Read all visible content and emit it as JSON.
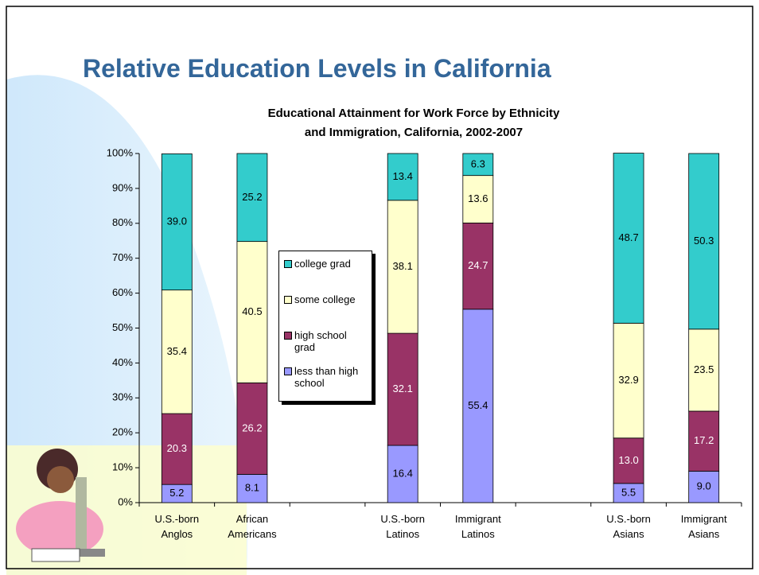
{
  "slide_title": "Relative Education Levels in California",
  "chart_data": {
    "type": "stacked_bar",
    "title": "Educational Attainment for Work Force by Ethnicity\nand Immigration, California, 2002-2007",
    "categories": [
      "U.S.-born\nAnglos",
      "African\nAmericans",
      null,
      "U.S.-born\nLatinos",
      "Immigrant\nLatinos",
      null,
      "U.S.-born\nAsians",
      "Immigrant\nAsians"
    ],
    "series": [
      {
        "name": "less than high school",
        "color": "#9999ff",
        "label_color": "#000000",
        "values": [
          5.2,
          8.1,
          null,
          16.4,
          55.4,
          null,
          5.5,
          9.0
        ],
        "value_labels": [
          "5.2",
          "8.1",
          null,
          "16.4",
          "55.4",
          null,
          "5.5",
          "9.0"
        ]
      },
      {
        "name": "high school grad",
        "color": "#993366",
        "label_color": "#ffffff",
        "values": [
          20.3,
          26.2,
          null,
          32.1,
          24.7,
          null,
          13.0,
          17.2
        ],
        "value_labels": [
          "20.3",
          "26.2",
          null,
          "32.1",
          "24.7",
          null,
          "13.0",
          "17.2"
        ]
      },
      {
        "name": "some college",
        "color": "#ffffcc",
        "label_color": "#000000",
        "values": [
          35.4,
          40.5,
          null,
          38.1,
          13.6,
          null,
          32.9,
          23.5
        ],
        "value_labels": [
          "35.4",
          "40.5",
          null,
          "38.1",
          "13.6",
          null,
          "32.9",
          "23.5"
        ]
      },
      {
        "name": "college grad",
        "color": "#33cccc",
        "label_color": "#000000",
        "values": [
          39.0,
          25.2,
          null,
          13.4,
          6.3,
          null,
          48.7,
          50.3
        ],
        "value_labels": [
          "39.0",
          "25.2",
          null,
          "13.4",
          "6.3",
          null,
          "48.7",
          "50.3"
        ]
      }
    ],
    "ylim": [
      0,
      100
    ],
    "yticks": [
      {
        "value": 0,
        "label": "0%"
      },
      {
        "value": 10,
        "label": "10%"
      },
      {
        "value": 20,
        "label": "20%"
      },
      {
        "value": 30,
        "label": "30%"
      },
      {
        "value": 40,
        "label": "40%"
      },
      {
        "value": 50,
        "label": "50%"
      },
      {
        "value": 60,
        "label": "60%"
      },
      {
        "value": 70,
        "label": "70%"
      },
      {
        "value": 80,
        "label": "80%"
      },
      {
        "value": 90,
        "label": "90%"
      },
      {
        "value": 100,
        "label": "100%"
      }
    ],
    "grid": false
  }
}
